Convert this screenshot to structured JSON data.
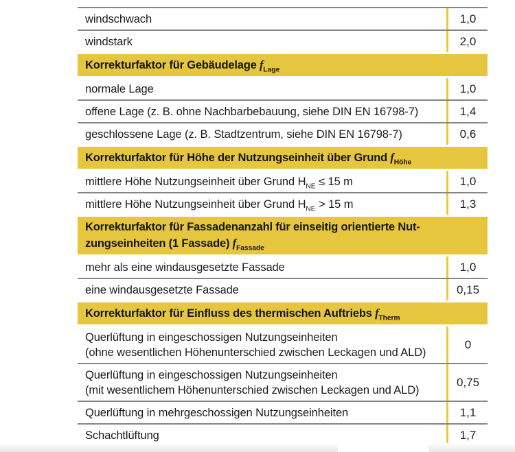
{
  "colors": {
    "header_bg": "#e6c63e",
    "divider": "#eac83f",
    "separator_line": "#858585",
    "text": "#1c1c1c",
    "page_bg": "#ffffff"
  },
  "headers": [
    {
      "text": "Korrekturfaktor für Gebäudelage ",
      "symbol": "f",
      "sub": "Lage"
    },
    {
      "text": "Korrekturfaktor für Höhe der Nutzungseinheit über Grund ",
      "symbol": "f",
      "sub": "Höhe"
    },
    {
      "text": "Korrekturfaktor für Fassadenanzahl für einseitig orientierte Nut-\nzungseinheiten (1 Fassade) ",
      "symbol": "f",
      "sub": "Fassade"
    },
    {
      "text": "Korrekturfaktor für Einfluss des thermischen Auftriebs ",
      "symbol": "f",
      "sub": "Therm"
    }
  ],
  "rows": [
    {
      "pre": "windschwach",
      "value": "1,0"
    },
    {
      "pre": "windstark",
      "value": "2,0"
    },
    {
      "pre": "normale Lage",
      "value": "1,0"
    },
    {
      "pre": "offene Lage (z. B. ohne Nachbarbebauung, siehe DIN EN 16798-7)",
      "value": "1,4"
    },
    {
      "pre": "geschlossene Lage (z. B. Stadtzentrum, siehe DIN EN 16798-7)",
      "value": "0,6"
    },
    {
      "pre": "mittlere Höhe Nutzungseinheit über Grund H",
      "sub": "NE",
      "post": " ≤ 15 m",
      "value": "1,0"
    },
    {
      "pre": "mittlere Höhe Nutzungseinheit über Grund H",
      "sub": "NE",
      "post": " > 15 m",
      "value": "1,3"
    },
    {
      "pre": "mehr als eine windausgesetzte Fassade",
      "value": "1,0"
    },
    {
      "pre": "eine windausgesetzte Fassade",
      "value": "0,15"
    },
    {
      "pre": "Querlüftung in eingeschossigen Nutzungseinheiten\n(ohne wesentlichen Höhenunterschied zwischen Leckagen und ALD)",
      "value": "0"
    },
    {
      "pre": "Querlüftung in eingeschossigen Nutzungseinheiten\n(mit wesentlichem Höhenunterschied zwischen Leckagen und ALD)",
      "value": "0,75"
    },
    {
      "pre": "Querlüftung in mehrgeschossigen Nutzungseinheiten",
      "value": "1,1"
    },
    {
      "pre": "Schachtlüftung",
      "value": "1,7"
    }
  ]
}
